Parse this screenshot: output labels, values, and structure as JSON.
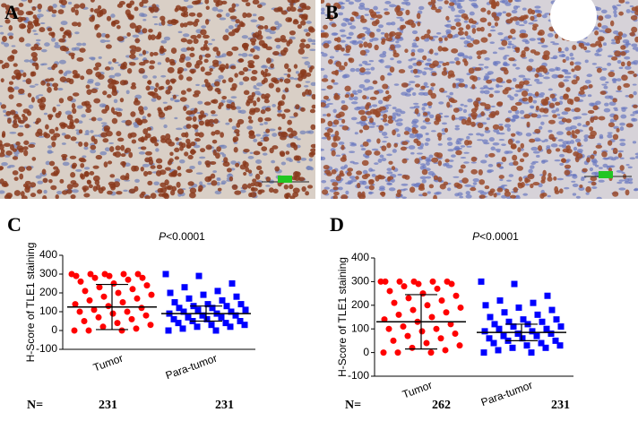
{
  "images": [
    {
      "label": "A"
    },
    {
      "label": "B"
    }
  ],
  "chart_data": [
    {
      "type": "strip",
      "panel": "C",
      "title_italic": "P",
      "title": "<0.0001",
      "ylabel": "H-Score of TLE1 staining",
      "ylim": [
        -100,
        400
      ],
      "yticks": [
        -100,
        0,
        100,
        200,
        300,
        400
      ],
      "categories": [
        "Tumor",
        "Para-tumor"
      ],
      "n_prefix": "N=",
      "n": [
        231,
        231
      ],
      "series": [
        {
          "color": "#ff0000",
          "marker": "circle",
          "mean": 125,
          "sd": 120,
          "values": [
            300,
            300,
            300,
            300,
            300,
            290,
            290,
            280,
            280,
            270,
            260,
            250,
            240,
            230,
            220,
            210,
            200,
            190,
            180,
            170,
            160,
            150,
            140,
            130,
            120,
            110,
            100,
            100,
            90,
            80,
            70,
            60,
            50,
            40,
            30,
            20,
            10,
            0,
            0,
            0
          ]
        },
        {
          "color": "#0000ff",
          "marker": "square",
          "mean": 90,
          "sd": 40,
          "values": [
            300,
            290,
            250,
            230,
            210,
            200,
            190,
            180,
            170,
            160,
            150,
            140,
            140,
            130,
            130,
            120,
            120,
            110,
            110,
            100,
            100,
            90,
            90,
            80,
            80,
            70,
            70,
            60,
            60,
            50,
            50,
            40,
            40,
            30,
            30,
            20,
            20,
            10,
            0,
            0
          ]
        }
      ]
    },
    {
      "type": "strip",
      "panel": "D",
      "title_italic": "P",
      "title": "<0.0001",
      "ylabel": "H-Score of TLE1 staining",
      "ylim": [
        -100,
        400
      ],
      "yticks": [
        -100,
        0,
        100,
        200,
        300,
        400
      ],
      "categories": [
        "Tumor",
        "Para-tumor"
      ],
      "n_prefix": "N=",
      "n": [
        262,
        231
      ],
      "series": [
        {
          "color": "#ff0000",
          "marker": "circle",
          "mean": 130,
          "sd": 115,
          "values": [
            300,
            300,
            300,
            300,
            300,
            300,
            290,
            290,
            280,
            270,
            260,
            250,
            240,
            230,
            220,
            210,
            200,
            190,
            180,
            170,
            160,
            150,
            140,
            130,
            120,
            110,
            100,
            100,
            90,
            80,
            70,
            60,
            50,
            40,
            30,
            20,
            10,
            0,
            0,
            0
          ]
        },
        {
          "color": "#0000ff",
          "marker": "square",
          "mean": 85,
          "sd": 35,
          "values": [
            300,
            290,
            240,
            220,
            210,
            200,
            190,
            180,
            170,
            160,
            150,
            140,
            140,
            130,
            130,
            120,
            120,
            110,
            110,
            100,
            100,
            90,
            90,
            80,
            80,
            70,
            70,
            60,
            60,
            50,
            50,
            40,
            40,
            30,
            30,
            20,
            20,
            10,
            0,
            0
          ]
        }
      ]
    }
  ]
}
